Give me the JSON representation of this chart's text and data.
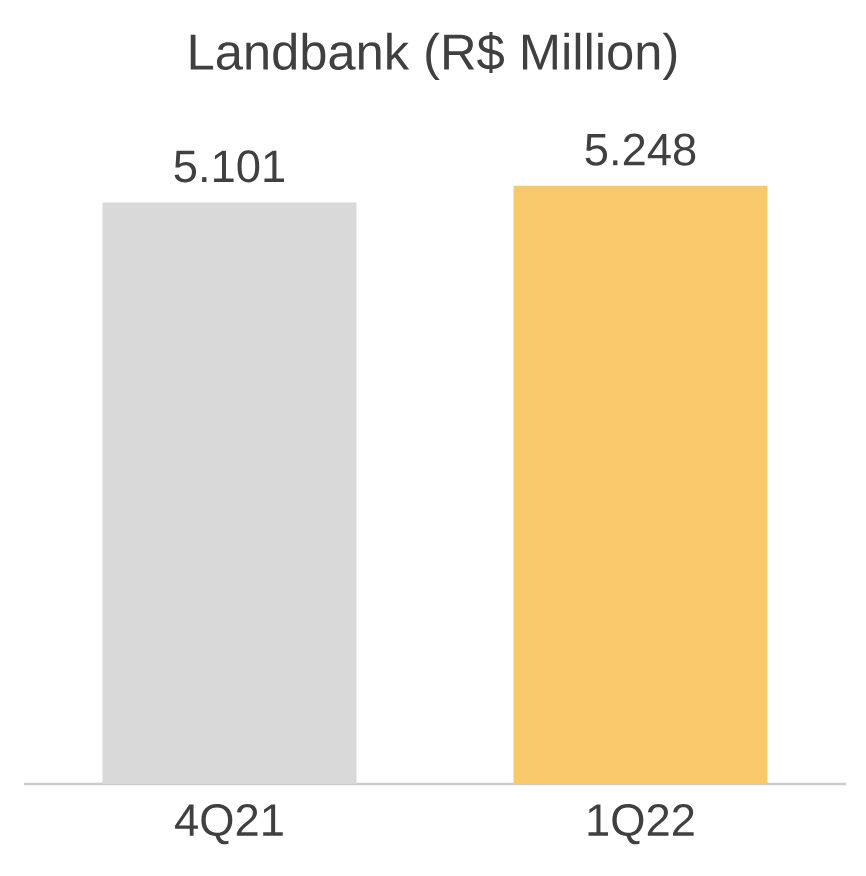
{
  "chart_data": {
    "type": "bar",
    "title": "Landbank (R$ Million)",
    "categories": [
      "4Q21",
      "1Q22"
    ],
    "values": [
      5.101,
      5.248
    ],
    "colors": [
      "#d9d9d9",
      "#f8c96b"
    ],
    "data_labels": true
  }
}
